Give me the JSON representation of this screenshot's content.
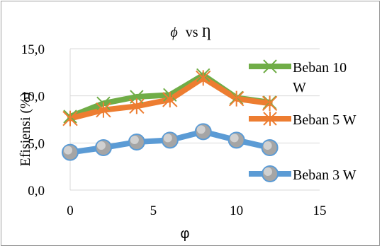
{
  "chart_data": {
    "type": "line",
    "title_symbol": "ϕ",
    "title_rest": "vs Ƞ",
    "xlabel": "φ",
    "ylabel": "Efisiensi (%)",
    "xlim": [
      0,
      15
    ],
    "ylim": [
      0,
      15
    ],
    "x_ticks": [
      "0",
      "5",
      "10",
      "15"
    ],
    "y_ticks": [
      "0,0",
      "5,0",
      "10,0",
      "15,0"
    ],
    "x_tick_values": [
      0,
      5,
      10,
      15
    ],
    "y_tick_values": [
      0,
      5,
      10,
      15
    ],
    "grid": "horizontal",
    "legend_position": "right",
    "x": [
      0,
      2,
      4,
      6,
      8,
      10,
      12
    ],
    "series": [
      {
        "name": "Beban 10 W",
        "legend_line1": "Beban 10",
        "legend_line2": "W",
        "color": "#70ad47",
        "marker": "x",
        "values": [
          7.8,
          9.2,
          9.9,
          10.1,
          12.2,
          9.8,
          9.3
        ]
      },
      {
        "name": "Beban 5 W",
        "legend_line1": "Beban 5 W",
        "color": "#ed7d31",
        "marker": "star",
        "values": [
          7.6,
          8.5,
          8.9,
          9.6,
          11.9,
          9.7,
          9.2
        ]
      },
      {
        "name": "Beban 3 W",
        "legend_line1": "Beban 3 W",
        "color": "#5b9bd5",
        "marker": "circle",
        "values": [
          4.0,
          4.5,
          5.1,
          5.3,
          6.2,
          5.3,
          4.5
        ]
      }
    ]
  }
}
